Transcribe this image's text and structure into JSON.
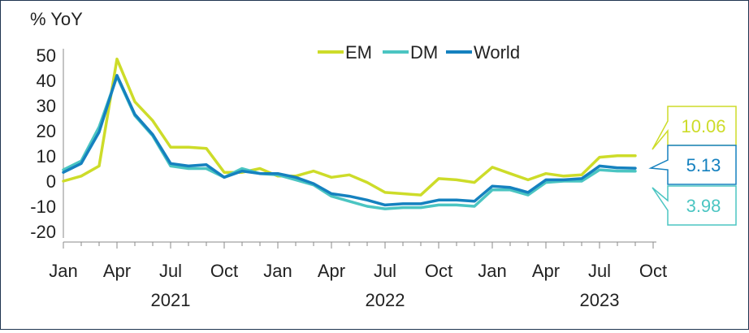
{
  "chart_data": {
    "type": "line",
    "ylabel": "% YoY",
    "ylim": [
      -20,
      50
    ],
    "yticks": [
      50,
      40,
      30,
      20,
      10,
      0,
      -10,
      -20
    ],
    "x_months": [
      "Jan 2021",
      "Feb 2021",
      "Mar 2021",
      "Apr 2021",
      "May 2021",
      "Jun 2021",
      "Jul 2021",
      "Aug 2021",
      "Sep 2021",
      "Oct 2021",
      "Nov 2021",
      "Dec 2021",
      "Jan 2022",
      "Feb 2022",
      "Mar 2022",
      "Apr 2022",
      "May 2022",
      "Jun 2022",
      "Jul 2022",
      "Aug 2022",
      "Sep 2022",
      "Oct 2022",
      "Nov 2022",
      "Dec 2022",
      "Jan 2023",
      "Feb 2023",
      "Mar 2023",
      "Apr 2023",
      "May 2023",
      "Jun 2023",
      "Jul 2023",
      "Aug 2023",
      "Sep 2023"
    ],
    "xtick_labels": [
      "Jan",
      "Apr",
      "Jul",
      "Oct",
      "Jan",
      "Apr",
      "Jul",
      "Oct",
      "Jan",
      "Apr",
      "Jul",
      "Oct"
    ],
    "year_labels": [
      "2021",
      "2022",
      "2023"
    ],
    "legend_position": "top-center",
    "series": [
      {
        "name": "EM",
        "color": "#cddc29",
        "values": [
          0,
          2,
          6,
          48.5,
          31.5,
          24,
          13.5,
          13.5,
          13,
          3.5,
          3.5,
          5,
          2,
          2,
          4,
          1.5,
          2.5,
          -0.5,
          -4.5,
          -5,
          -5.5,
          1,
          0.5,
          -0.5,
          5.5,
          3,
          0.5,
          3,
          2,
          2.5,
          9.5,
          10.1,
          10.06
        ],
        "end_label": "10.06"
      },
      {
        "name": "DM",
        "color": "#4bc5c2",
        "values": [
          4.5,
          8,
          21.5,
          41.5,
          26,
          18,
          6,
          5,
          5,
          1.5,
          5,
          3,
          2.5,
          0.5,
          -1.5,
          -6,
          -8,
          -10,
          -11,
          -10.5,
          -10.5,
          -9.5,
          -9.5,
          -10,
          -3.5,
          -3.5,
          -5.5,
          -0.5,
          0,
          0,
          4.5,
          4,
          3.98
        ],
        "end_label": "3.98"
      },
      {
        "name": "World",
        "color": "#1581bf",
        "values": [
          3.5,
          7,
          19.5,
          42,
          26.5,
          18.5,
          7,
          6,
          6.5,
          1.5,
          4,
          3,
          3,
          1.5,
          -1,
          -5,
          -6,
          -7.5,
          -9.5,
          -9,
          -9,
          -7.5,
          -7.5,
          -8,
          -2,
          -2.5,
          -4.5,
          0.5,
          0.5,
          1,
          6,
          5.3,
          5.13
        ],
        "end_label": "5.13"
      }
    ]
  }
}
